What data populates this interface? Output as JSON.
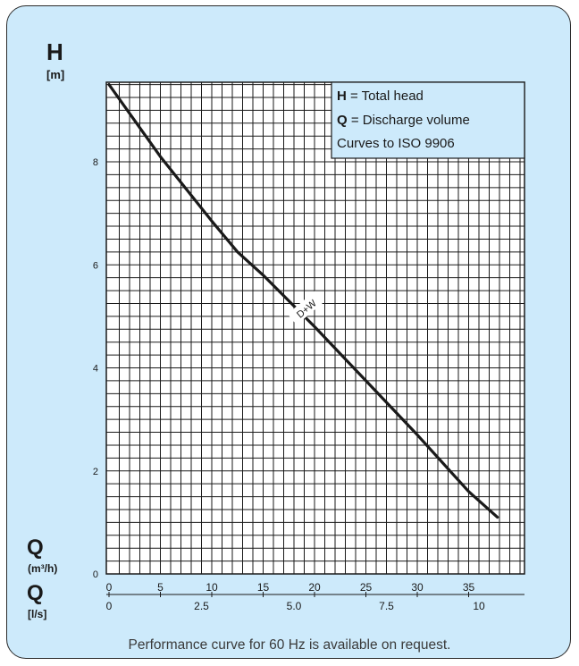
{
  "colors": {
    "panel_bg": "#cdeafb",
    "plot_bg": "#ffffff",
    "grid": "#1a1a1a",
    "curve": "#1a1a1a",
    "text": "#1a1a1a",
    "note": "#3a3a3a"
  },
  "footnote": "Performance curve for 60 Hz is available on request.",
  "chart_data": {
    "type": "line",
    "y_axis": {
      "symbol": "H",
      "unit": "[m]",
      "range": [
        0,
        9.5
      ],
      "ticks": [
        0,
        2,
        4,
        6,
        8
      ]
    },
    "x_axis": {
      "symbol": "Q",
      "unit": "(m³/h)",
      "range": [
        0,
        40
      ],
      "ticks": [
        0,
        5,
        10,
        15,
        20,
        25,
        30,
        35
      ]
    },
    "x_axis_secondary": {
      "symbol": "Q",
      "unit": "[l/s]",
      "ticks": [
        0,
        2.5,
        5.0,
        7.5,
        10
      ],
      "tick_labels": [
        "0",
        "2.5",
        "5.0",
        "7.5",
        "10"
      ]
    },
    "legend": {
      "placement": "top-right",
      "lines": [
        {
          "key": "H",
          "text": " = Total head"
        },
        {
          "key": "Q",
          "text": " = Discharge volume"
        },
        {
          "key": "",
          "text": "Curves to ISO 9906"
        }
      ]
    },
    "grid": true,
    "series": [
      {
        "name": "D+W",
        "x": [
          0,
          5,
          10,
          12.5,
          15,
          20,
          25,
          30,
          35,
          37.8
        ],
        "y": [
          9.5,
          8.1,
          6.85,
          6.25,
          5.8,
          4.8,
          3.75,
          2.7,
          1.6,
          1.1
        ]
      }
    ]
  }
}
